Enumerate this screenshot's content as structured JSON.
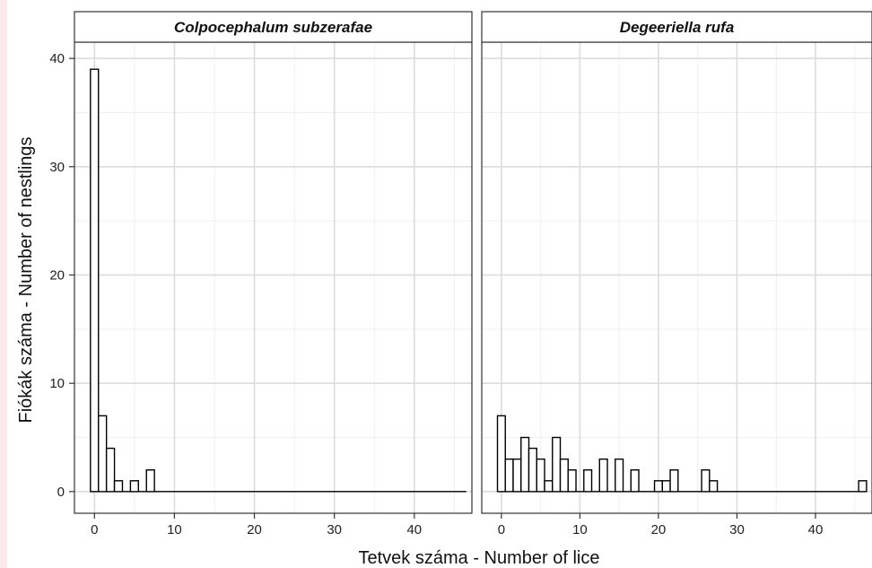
{
  "chart_data": {
    "type": "bar",
    "xlabel": "Tetvek száma - Number of lice",
    "ylabel": "Fiókák száma - Number of nestlings",
    "xlim": [
      -2.5,
      47.2
    ],
    "ylim": [
      -2.0,
      41.5
    ],
    "x_ticks": [
      0,
      10,
      20,
      30,
      40
    ],
    "y_ticks": [
      0,
      10,
      20,
      30,
      40
    ],
    "bin_width": 1,
    "grid": true,
    "panels": [
      {
        "title": "Colpocephalum subzerafae",
        "bins": [
          {
            "x": 0,
            "count": 39
          },
          {
            "x": 1,
            "count": 7
          },
          {
            "x": 2,
            "count": 4
          },
          {
            "x": 3,
            "count": 1
          },
          {
            "x": 5,
            "count": 1
          },
          {
            "x": 7,
            "count": 2
          }
        ],
        "baseline_to": 47
      },
      {
        "title": "Degeeriella rufa",
        "bins": [
          {
            "x": 0,
            "count": 7
          },
          {
            "x": 1,
            "count": 3
          },
          {
            "x": 2,
            "count": 3
          },
          {
            "x": 3,
            "count": 5
          },
          {
            "x": 4,
            "count": 4
          },
          {
            "x": 5,
            "count": 3
          },
          {
            "x": 6,
            "count": 1
          },
          {
            "x": 7,
            "count": 5
          },
          {
            "x": 8,
            "count": 3
          },
          {
            "x": 9,
            "count": 2
          },
          {
            "x": 11,
            "count": 2
          },
          {
            "x": 13,
            "count": 3
          },
          {
            "x": 15,
            "count": 3
          },
          {
            "x": 17,
            "count": 2
          },
          {
            "x": 20,
            "count": 1
          },
          {
            "x": 21,
            "count": 1
          },
          {
            "x": 22,
            "count": 2
          },
          {
            "x": 26,
            "count": 2
          },
          {
            "x": 27,
            "count": 1
          },
          {
            "x": 46,
            "count": 1
          }
        ],
        "baseline_to": 47
      }
    ]
  }
}
